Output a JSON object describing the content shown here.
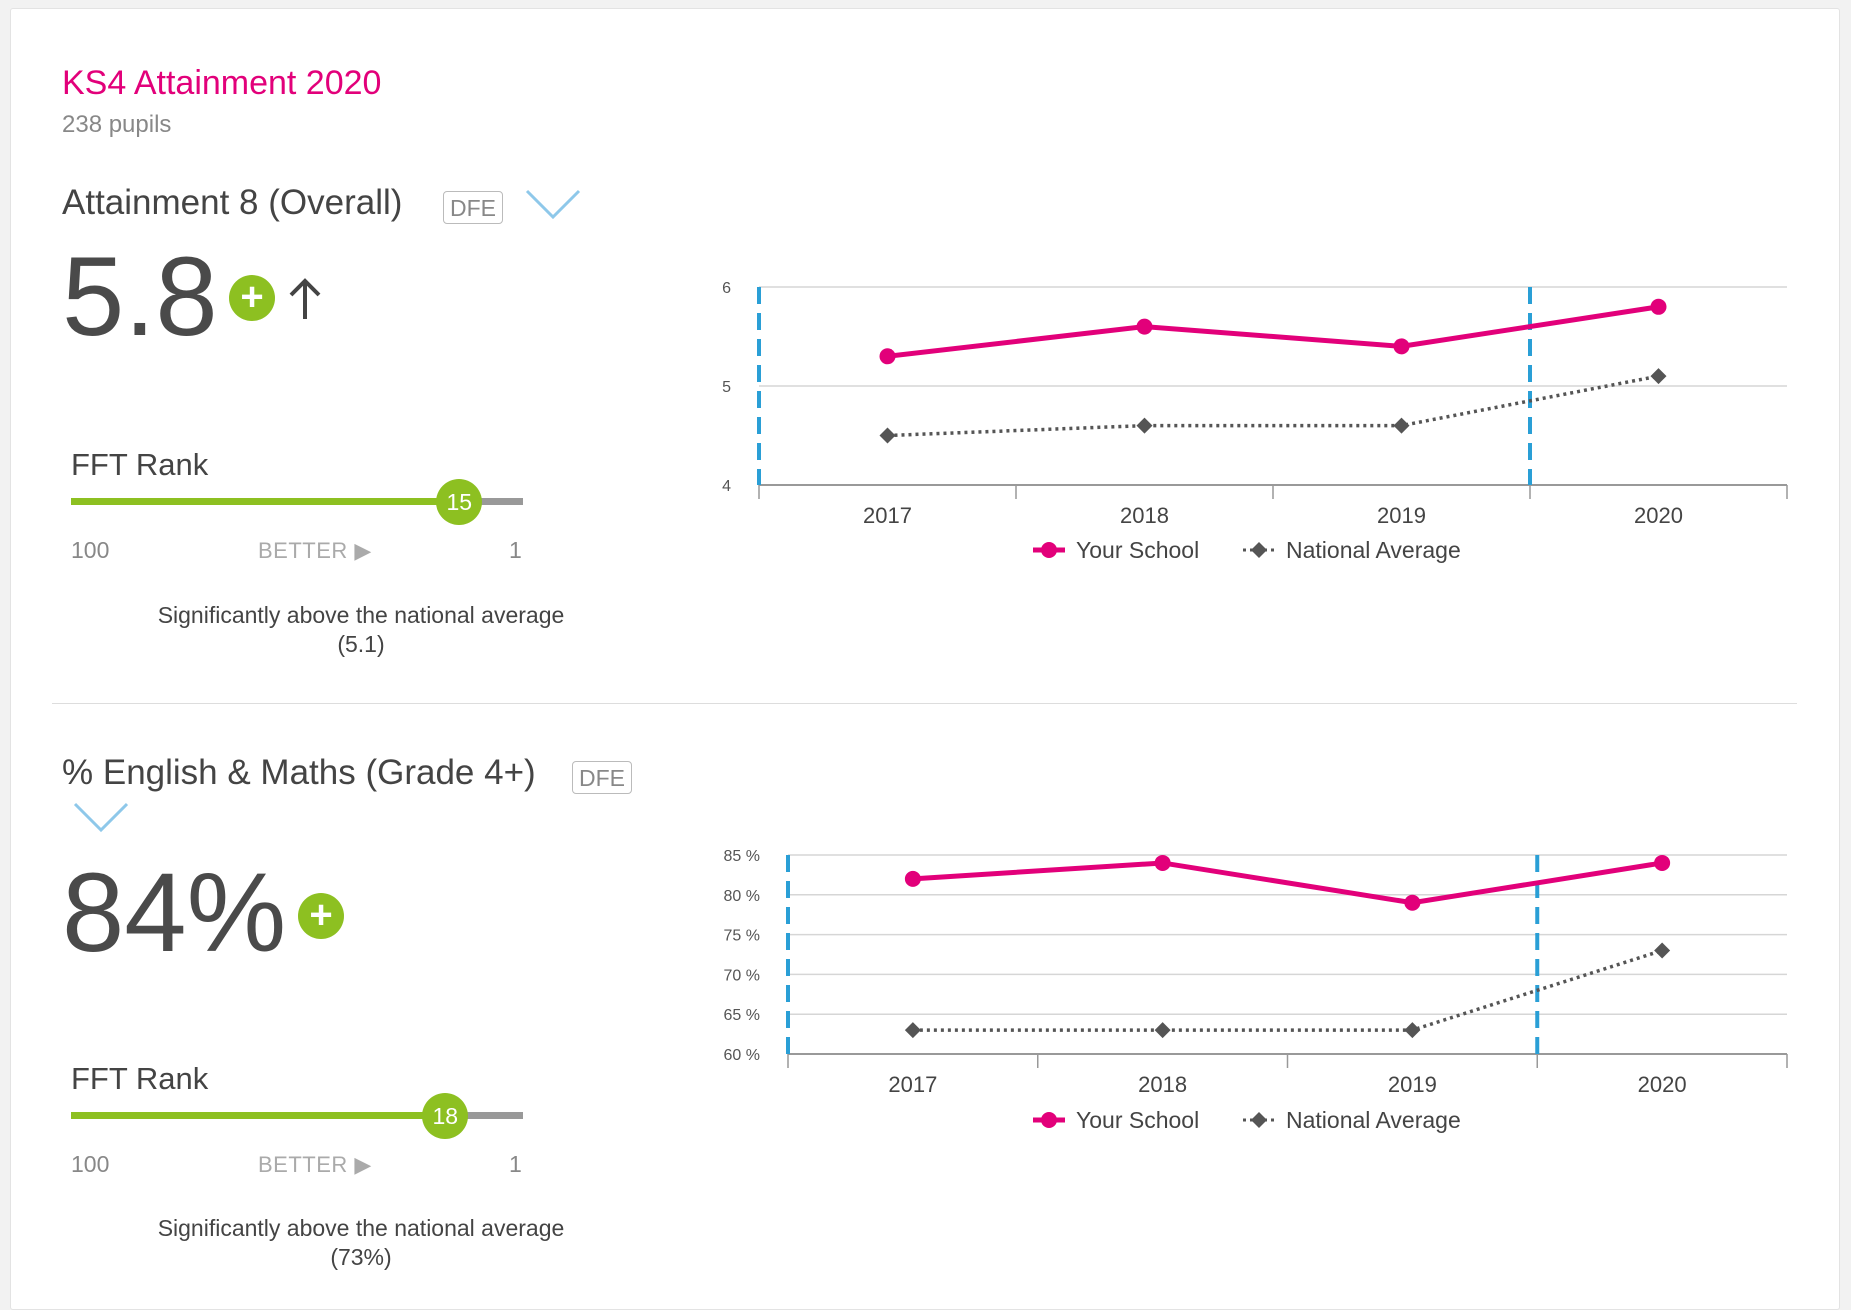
{
  "page": {
    "title": "KS4 Attainment 2020",
    "subtitle": "238 pupils"
  },
  "colors": {
    "accent": "#e2007a",
    "positive": "#8dc021",
    "national": "#555555",
    "marker_line": "#2a9fd6"
  },
  "sections": [
    {
      "title": "Attainment 8 (Overall)",
      "badge": "DFE",
      "value": "5.8",
      "trend_icon": "arrow-up-icon",
      "significance_icon": "plus-circle-icon",
      "rank_label": "FFT Rank",
      "rank": "15",
      "rank_fraction": 0.859,
      "scale_left": "100",
      "scale_mid": "BETTER",
      "scale_right": "1",
      "note_line1": "Significantly above the national average",
      "note_line2": "(5.1)"
    },
    {
      "title": "% English & Maths (Grade 4+)",
      "badge": "DFE",
      "value": "84%",
      "significance_icon": "plus-circle-icon",
      "rank_label": "FFT Rank",
      "rank": "18",
      "rank_fraction": 0.828,
      "scale_left": "100",
      "scale_mid": "BETTER",
      "scale_right": "1",
      "note_line1": "Significantly above the national average",
      "note_line2": "(73%)"
    }
  ],
  "chart_data": [
    {
      "type": "line",
      "categories": [
        "2017",
        "2018",
        "2019",
        "2020"
      ],
      "series": [
        {
          "name": "Your School",
          "values": [
            5.3,
            5.6,
            5.4,
            5.8
          ]
        },
        {
          "name": "National Average",
          "values": [
            4.5,
            4.6,
            4.6,
            5.1
          ]
        }
      ],
      "ylim": [
        4,
        6
      ],
      "yticks": [
        "4",
        "5",
        "6"
      ],
      "legend": "bottom",
      "grid": true
    },
    {
      "type": "line",
      "categories": [
        "2017",
        "2018",
        "2019",
        "2020"
      ],
      "series": [
        {
          "name": "Your School",
          "values": [
            82,
            84,
            79,
            84
          ]
        },
        {
          "name": "National Average",
          "values": [
            63,
            63,
            63,
            73
          ]
        }
      ],
      "ylim": [
        60,
        85
      ],
      "yticks": [
        "60 %",
        "65 %",
        "70 %",
        "75 %",
        "80 %",
        "85 %"
      ],
      "legend": "bottom",
      "grid": true
    }
  ]
}
